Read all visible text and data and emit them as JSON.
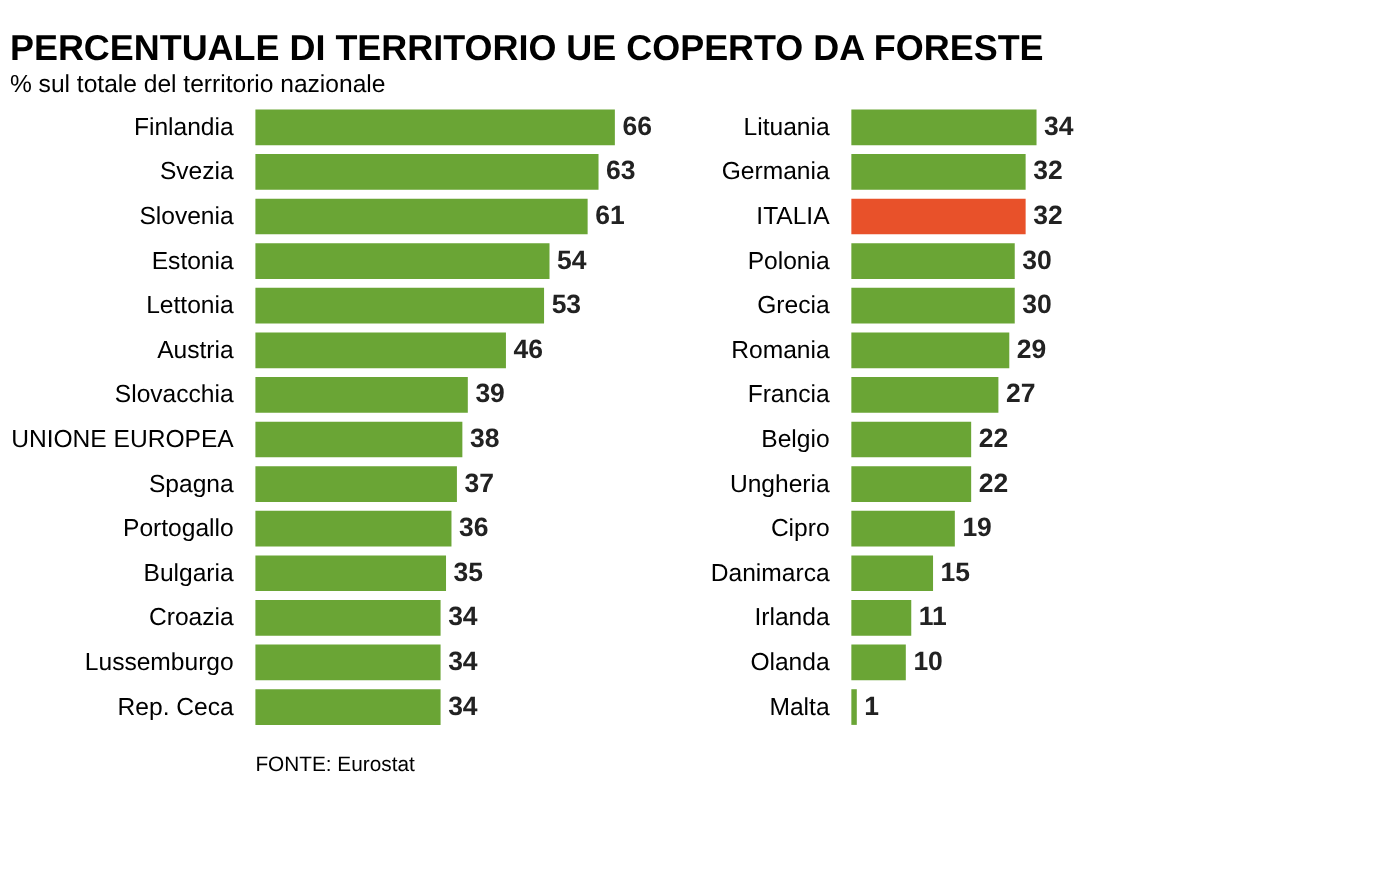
{
  "chart_data": [
    {
      "type": "bar",
      "orientation": "horizontal",
      "title": "PERCENTUALE DI TERRITORIO UE COPERTO DA FORESTE",
      "subtitle": "% sul totale del territorio nazionale",
      "annotations": [
        "FONTE: Eurostat"
      ],
      "data_labels": true,
      "grid": false,
      "tick_labels": "y",
      "categories": [
        "Finlandia",
        "Svezia",
        "Slovenia",
        "Estonia",
        "Lettonia",
        "Austria",
        "Slovacchia",
        "UNIONE EUROPEA",
        "Spagna",
        "Portogallo",
        "Bulgaria",
        "Croazia",
        "Lussemburgo",
        "Rep. Ceca"
      ],
      "values": [
        66,
        63,
        61,
        54,
        53,
        46,
        39,
        38,
        37,
        36,
        35,
        34,
        34,
        34
      ],
      "colors": [
        "#6aa535",
        "#6aa535",
        "#6aa535",
        "#6aa535",
        "#6aa535",
        "#6aa535",
        "#6aa535",
        "#6aa535",
        "#6aa535",
        "#6aa535",
        "#6aa535",
        "#6aa535",
        "#6aa535",
        "#6aa535"
      ]
    },
    {
      "type": "bar",
      "orientation": "horizontal",
      "data_labels": true,
      "grid": false,
      "tick_labels": "y",
      "categories": [
        "Lituania",
        "Germania",
        "ITALIA",
        "Polonia",
        "Grecia",
        "Romania",
        "Francia",
        "Belgio",
        "Ungheria",
        "Cipro",
        "Danimarca",
        "Irlanda",
        "Olanda",
        "Malta"
      ],
      "values": [
        34,
        32,
        32,
        30,
        30,
        29,
        27,
        22,
        22,
        19,
        15,
        11,
        10,
        1
      ],
      "colors": [
        "#6aa535",
        "#6aa535",
        "#e8512a",
        "#6aa535",
        "#6aa535",
        "#6aa535",
        "#6aa535",
        "#6aa535",
        "#6aa535",
        "#6aa535",
        "#6aa535",
        "#6aa535",
        "#6aa535",
        "#6aa535"
      ]
    }
  ]
}
